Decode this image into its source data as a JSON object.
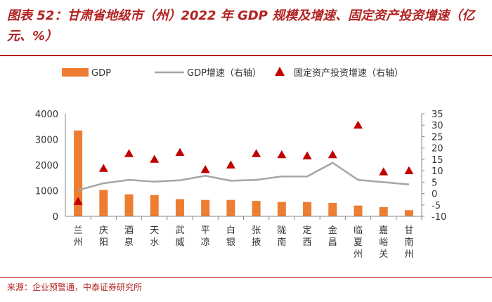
{
  "header": {
    "title": "图表 52：甘肃省地级市（州）2022 年 GDP 规模及增速、固定资产投资增速（亿元、%）"
  },
  "footer": {
    "source": "来源：企业预警通，中泰证券研究所"
  },
  "colors": {
    "title": "#b22222",
    "bar": "#ed7d31",
    "line": "#a5a5a5",
    "marker": "#c00000"
  },
  "chart_data": {
    "type": "bar",
    "categories": [
      "兰州",
      "庆阳",
      "酒泉",
      "天水",
      "武威",
      "平凉",
      "白银",
      "张掖",
      "陇南",
      "定西",
      "金昌",
      "临夏州",
      "嘉峪关",
      "甘南州"
    ],
    "series": [
      {
        "name": "GDP",
        "type": "bar",
        "axis": "left",
        "values": [
          3350,
          1030,
          860,
          830,
          670,
          640,
          640,
          600,
          560,
          560,
          520,
          420,
          360,
          240
        ]
      },
      {
        "name": "GDP增速（右轴）",
        "type": "line",
        "axis": "right",
        "values": [
          1.5,
          4.5,
          6,
          5.2,
          5.8,
          7.8,
          5.6,
          6,
          7.5,
          7.5,
          13.5,
          6,
          5,
          4
        ]
      },
      {
        "name": "固定资产投资增速（右轴）",
        "type": "scatter",
        "marker": "triangle",
        "axis": "right",
        "values": [
          -3.5,
          11,
          17.5,
          15,
          18,
          10.5,
          12.5,
          17.5,
          17,
          16.5,
          17,
          30,
          9.5,
          10
        ]
      }
    ],
    "legend": [
      "GDP",
      "GDP增速（右轴）",
      "固定资产投资增速（右轴）"
    ],
    "y_left": {
      "min": 0,
      "max": 4000,
      "ticks": [
        0,
        1000,
        2000,
        3000,
        4000
      ]
    },
    "y_right": {
      "min": -10,
      "max": 35,
      "ticks": [
        -10,
        -5,
        0,
        5,
        10,
        15,
        20,
        25,
        30,
        35
      ]
    },
    "legend_position": "top",
    "grid": false
  }
}
